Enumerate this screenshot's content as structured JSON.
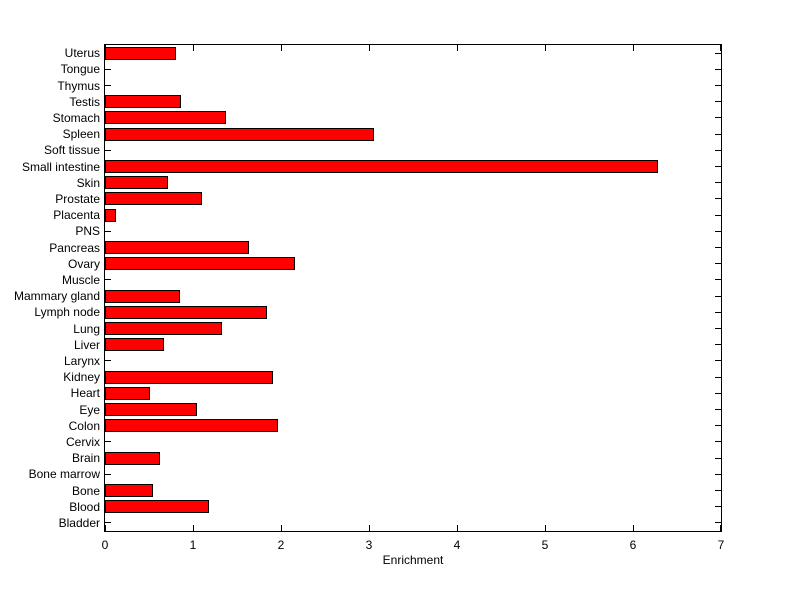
{
  "chart_data": {
    "type": "bar",
    "orientation": "horizontal",
    "title": "",
    "xlabel": "Enrichment",
    "ylabel": "",
    "xlim": [
      0,
      7
    ],
    "xticks": [
      "0",
      "1",
      "2",
      "3",
      "4",
      "5",
      "6",
      "7"
    ],
    "grid": false,
    "legend": null,
    "bar_color": "#ff0000",
    "bar_edge_color": "#000000",
    "background_color": "#ffffff",
    "axis_color": "#000000",
    "categories": [
      "Uterus",
      "Tongue",
      "Thymus",
      "Testis",
      "Stomach",
      "Spleen",
      "Soft tissue",
      "Small intestine",
      "Skin",
      "Prostate",
      "Placenta",
      "PNS",
      "Pancreas",
      "Ovary",
      "Muscle",
      "Mammary gland",
      "Lymph node",
      "Lung",
      "Liver",
      "Larynx",
      "Kidney",
      "Heart",
      "Eye",
      "Colon",
      "Cervix",
      "Brain",
      "Bone marrow",
      "Bone",
      "Blood",
      "Bladder"
    ],
    "values": [
      0.81,
      0,
      0,
      0.86,
      1.37,
      3.06,
      0,
      6.28,
      0.71,
      1.1,
      0.13,
      0,
      1.64,
      2.16,
      0,
      0.85,
      1.84,
      1.33,
      0.67,
      0,
      1.91,
      0.51,
      1.05,
      1.96,
      0,
      0.63,
      0,
      0.54,
      1.18,
      0
    ]
  }
}
